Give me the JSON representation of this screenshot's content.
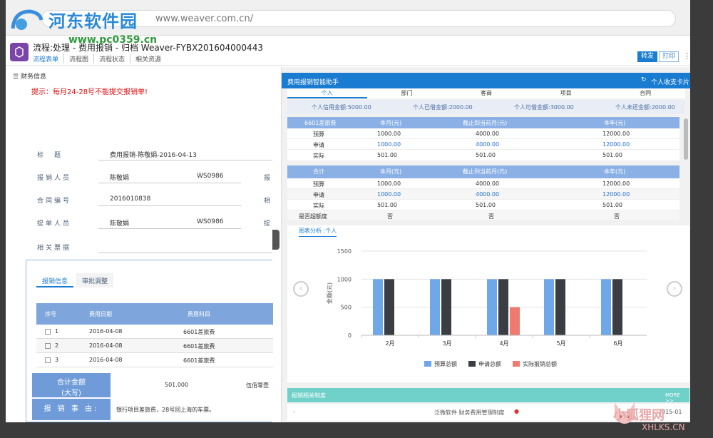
{
  "browser": {
    "url": "www.weaver.com.cn/"
  },
  "watermark": {
    "site": "河东软件园",
    "sub": "www.pc0359.cn",
    "br_cn": "小狐狸网",
    "br_en": "XHLKS.CN"
  },
  "header": {
    "title": "流程:处理 - 费用报销 - 归档 Weaver-FYBX201604000443",
    "tabs": [
      "流程表单",
      "流程图",
      "流程状态",
      "相关资源"
    ],
    "btn_forward": "转发",
    "btn_print": "打印"
  },
  "left": {
    "section": "财务信息",
    "tip": "提示：每月24-28号不能提交报销单!",
    "fields": {
      "title_label": "标　题",
      "title_value": "费用报销-陈敬娟-2016-04-13",
      "reporter_label": "报销人员",
      "reporter_value": "陈敬娟",
      "reporter_code": "WS0986",
      "reporter_extra": "报",
      "contract_label": "合同编号",
      "contract_value": "2016010838",
      "contract_extra": "相",
      "submitter_label": "提单人员",
      "submitter_value": "陈敬娟",
      "submitter_code": "WS0986",
      "submitter_extra": "提",
      "ticket_label": "相关票据"
    },
    "tabs": [
      "报销信息",
      "审批调整"
    ],
    "table": {
      "headers": [
        "序号",
        "费用日期",
        "费用科目"
      ],
      "rows": [
        [
          "1",
          "2016-04-08",
          "6601差旅费"
        ],
        [
          "2",
          "2016-04-08",
          "6601差旅费"
        ],
        [
          "3",
          "2016-04-08",
          "6601差旅费"
        ]
      ]
    },
    "sum_label": "合计金额\n(大写)",
    "sum_label1": "合计金额",
    "sum_label2": "(大写)",
    "sum_value": "501.000",
    "sum_cn": "伍佰零壹",
    "reason_label": "报 销 事 由:",
    "reason_value": "银行项目差旅费，28号回上海的车票。"
  },
  "right": {
    "title": "费用报销智能助手",
    "card": "个人收支卡片",
    "tabs": [
      "个人",
      "部门",
      "客商",
      "项目",
      "合同"
    ],
    "info": [
      "个人信用金额:5000.00",
      "个人已借金额:2000.00",
      "个人可借金额:3000.00",
      "个人未还金额:2000.00"
    ],
    "t1": {
      "headers": [
        "6601差旅费",
        "本月(元)",
        "截止到当前月(元)",
        "本年(元)"
      ],
      "rows": [
        [
          "预算",
          "1000.00",
          "4000.00",
          "12000.00"
        ],
        [
          "申请",
          "1000.00",
          "4000.00",
          "12000.00"
        ],
        [
          "实际",
          "501.00",
          "501.00",
          "501.00"
        ],
        [
          "是否超额度",
          "否",
          "否",
          "否"
        ]
      ]
    },
    "t2": {
      "headers": [
        "合计",
        "本月(元)",
        "截止到当前月(元)",
        "本年(元)"
      ],
      "rows": [
        [
          "预算",
          "1000.00",
          "4000.00",
          "12000.00"
        ],
        [
          "申请",
          "1000.00",
          "4000.00",
          "12000.00"
        ],
        [
          "实际",
          "501.00",
          "501.00",
          "501.00"
        ],
        [
          "是否超额度",
          "否",
          "否",
          "否"
        ]
      ]
    },
    "chart_tab": "图表分析 :个人",
    "bottom_title": "报销相关制度",
    "more": "MORE >>",
    "bottom_item": "泛微软件 财务费用管理制度",
    "bottom_date": "2015-01"
  },
  "chart_data": {
    "type": "bar",
    "categories": [
      "2月",
      "3月",
      "4月",
      "5月",
      "6月"
    ],
    "series": [
      {
        "name": "预算总额",
        "color": "#6ea8e8",
        "values": [
          1000,
          1000,
          1000,
          1000,
          1000
        ]
      },
      {
        "name": "申请总额",
        "color": "#3a3d42",
        "values": [
          1000,
          1000,
          1000,
          1000,
          1000
        ]
      },
      {
        "name": "实际报销总额",
        "color": "#ee7a70",
        "values": [
          0,
          0,
          501,
          0,
          0
        ]
      }
    ],
    "ylabel": "金额(元)",
    "ylim": [
      0,
      1500
    ],
    "yticks": [
      0,
      500,
      1000,
      1500
    ],
    "grid": true,
    "legend": "bottom"
  }
}
